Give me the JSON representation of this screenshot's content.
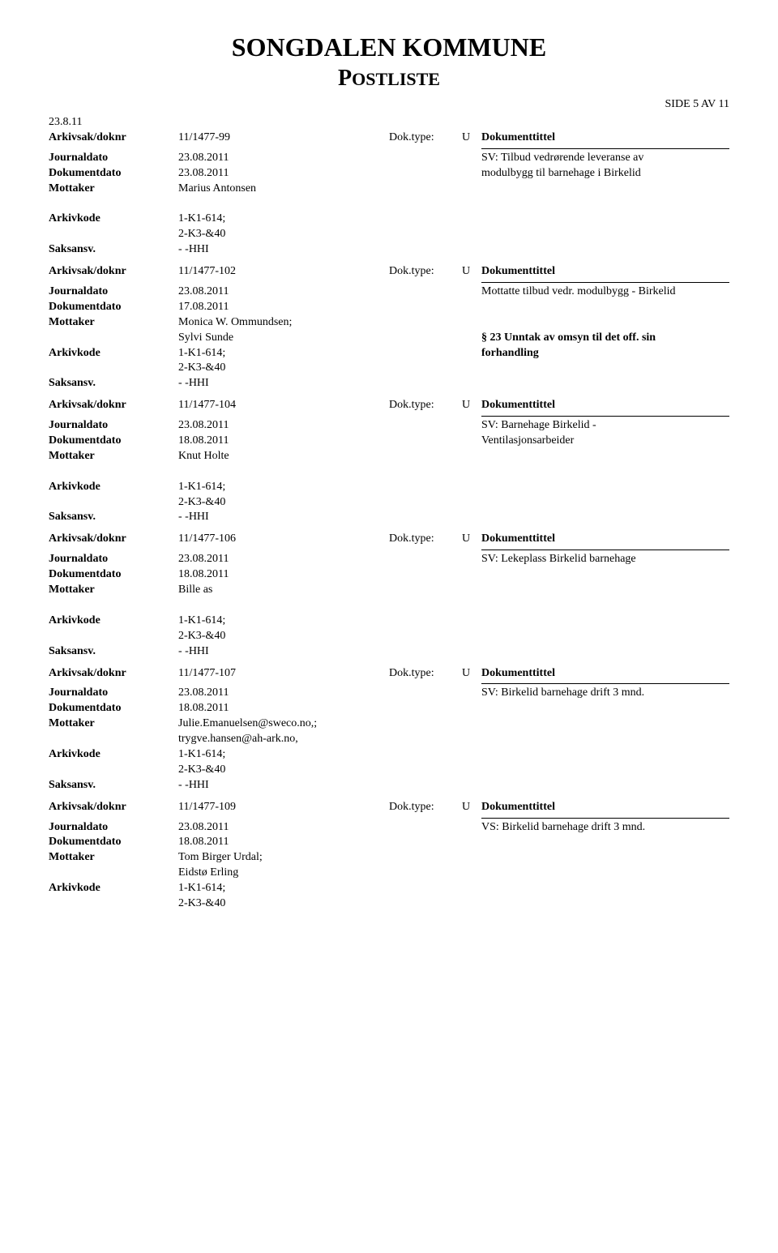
{
  "header": {
    "title": "SONGDALEN KOMMUNE",
    "subtitle_big": "P",
    "subtitle_small": "OSTLISTE"
  },
  "page_indicator": "SIDE 5 AV 11",
  "date": "23.8.11",
  "labels": {
    "arkivsak": "Arkivsak/doknr",
    "journaldato": "Journaldato",
    "dokumentdato": "Dokumentdato",
    "mottaker": "Mottaker",
    "arkivkode": "Arkivkode",
    "saksansv": "Saksansv.",
    "doktype": "Dok.type:",
    "dokumenttittel": "Dokumenttittel"
  },
  "records": [
    {
      "arkivsak": "11/1477-99",
      "doktype": "U",
      "journaldato": "23.08.2011",
      "dokumentdato": "23.08.2011",
      "mottaker": [
        "Marius Antonsen"
      ],
      "arkivkode": [
        "1-K1-614;",
        "2-K3-&40"
      ],
      "saksansv": "- -HHI",
      "tittel": [
        "SV: Tilbud vedrørende leveranse av",
        "modulbygg til barnehage i Birkelid"
      ],
      "extra": []
    },
    {
      "arkivsak": "11/1477-102",
      "doktype": "U",
      "journaldato": "23.08.2011",
      "dokumentdato": "17.08.2011",
      "mottaker": [
        "Monica W. Ommundsen;",
        "Sylvi Sunde"
      ],
      "arkivkode": [
        "1-K1-614;",
        "2-K3-&40"
      ],
      "saksansv": "- -HHI",
      "tittel": [
        "Mottatte tilbud vedr. modulbygg - Birkelid"
      ],
      "extra": [
        "§ 23 Unntak av omsyn til det off. sin",
        "forhandling"
      ]
    },
    {
      "arkivsak": "11/1477-104",
      "doktype": "U",
      "journaldato": "23.08.2011",
      "dokumentdato": "18.08.2011",
      "mottaker": [
        "Knut Holte"
      ],
      "arkivkode": [
        "1-K1-614;",
        "2-K3-&40"
      ],
      "saksansv": "- -HHI",
      "tittel": [
        "SV: Barnehage Birkelid -",
        "Ventilasjonsarbeider"
      ],
      "extra": []
    },
    {
      "arkivsak": "11/1477-106",
      "doktype": "U",
      "journaldato": "23.08.2011",
      "dokumentdato": "18.08.2011",
      "mottaker": [
        "Bille as"
      ],
      "arkivkode": [
        "1-K1-614;",
        "2-K3-&40"
      ],
      "saksansv": "- -HHI",
      "tittel": [
        "SV: Lekeplass Birkelid barnehage"
      ],
      "extra": []
    },
    {
      "arkivsak": "11/1477-107",
      "doktype": "U",
      "journaldato": "23.08.2011",
      "dokumentdato": "18.08.2011",
      "mottaker": [
        "Julie.Emanuelsen@sweco.no,;",
        "trygve.hansen@ah-ark.no,"
      ],
      "arkivkode": [
        "1-K1-614;",
        "2-K3-&40"
      ],
      "saksansv": "- -HHI",
      "tittel": [
        "SV: Birkelid barnehage drift 3 mnd."
      ],
      "extra": []
    },
    {
      "arkivsak": "11/1477-109",
      "doktype": "U",
      "journaldato": "23.08.2011",
      "dokumentdato": "18.08.2011",
      "mottaker": [
        "Tom Birger Urdal;",
        "Eidstø Erling"
      ],
      "arkivkode": [
        "1-K1-614;",
        "2-K3-&40"
      ],
      "saksansv": "",
      "tittel": [
        "VS: Birkelid barnehage drift 3 mnd."
      ],
      "extra": []
    }
  ]
}
